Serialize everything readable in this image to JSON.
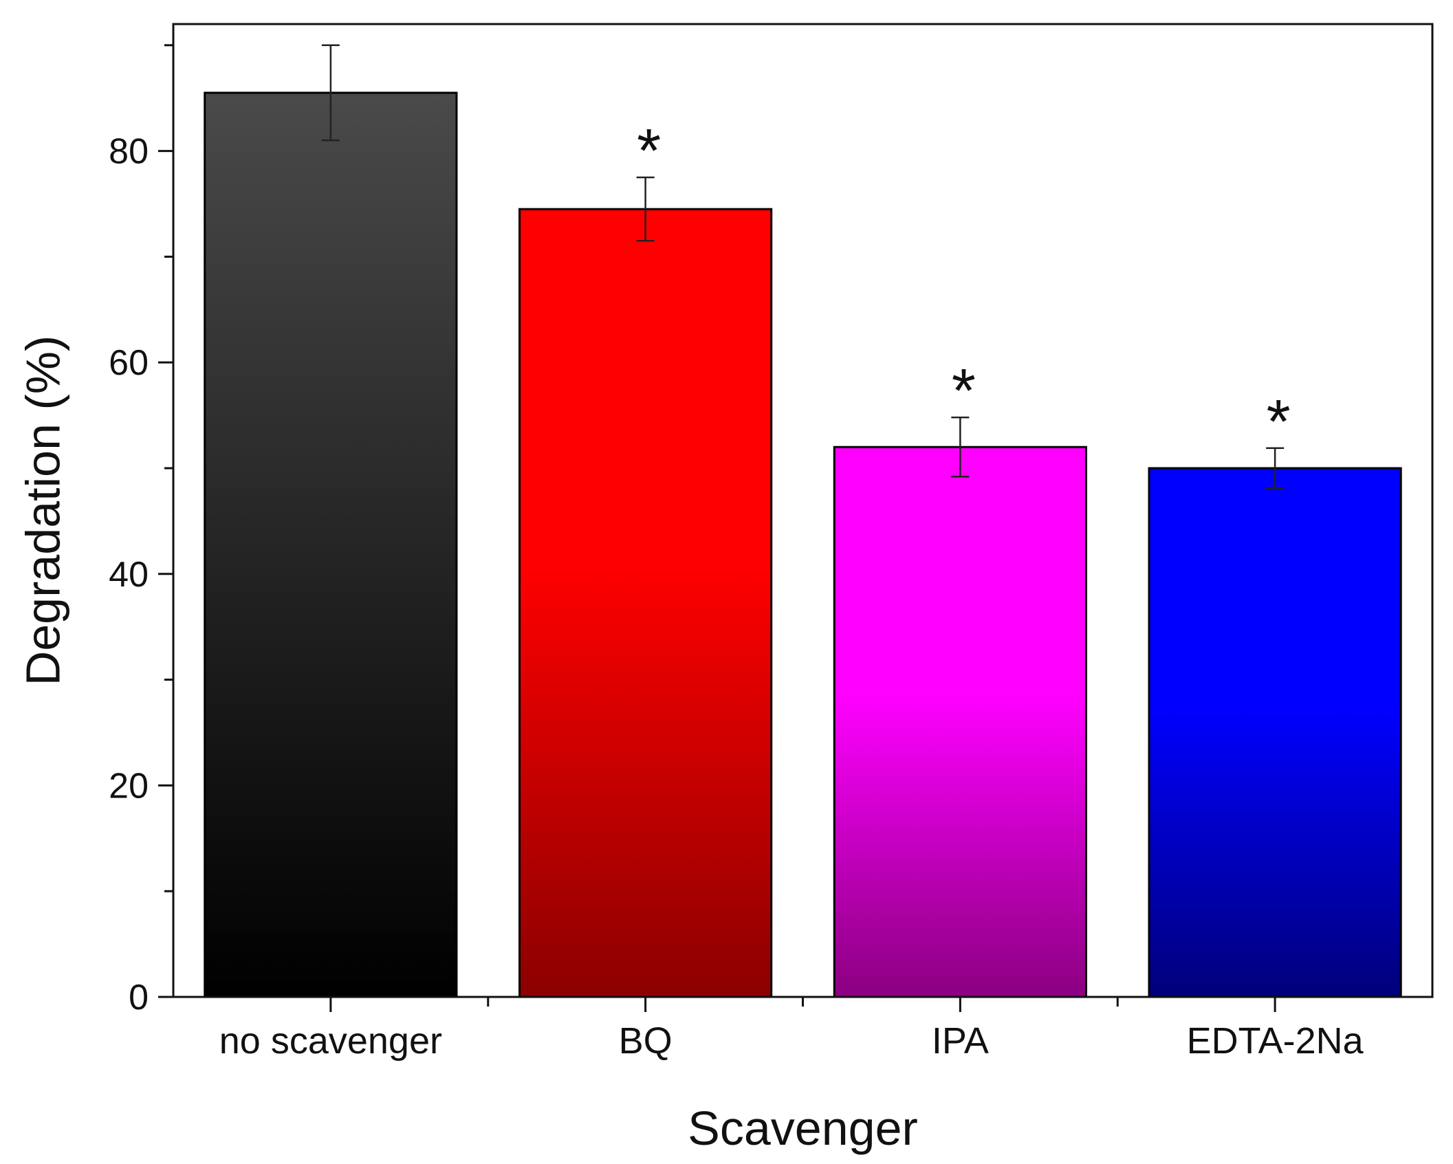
{
  "chart_data": {
    "type": "bar",
    "title": "",
    "xlabel": "Scavenger",
    "ylabel": "Degradation (%)",
    "ylim": [
      0,
      92
    ],
    "yticks": [
      0,
      20,
      40,
      60,
      80
    ],
    "yticks_minor": [
      10,
      30,
      50,
      70,
      90
    ],
    "grid": false,
    "legend": "none",
    "categories": [
      "no scavenger",
      "BQ",
      "IPA",
      "EDTA-2Na"
    ],
    "values": [
      85.5,
      74.5,
      52,
      50
    ],
    "errors": [
      4.5,
      3.0,
      2.8,
      1.9
    ],
    "significance": [
      "",
      "*",
      "*",
      "*"
    ],
    "colors": [
      {
        "top": "#4a4a4a",
        "bottom": "#000000"
      },
      {
        "top": "#ff0000",
        "bottom": "#8b0000"
      },
      {
        "top": "#ff00ff",
        "bottom": "#8b0080"
      },
      {
        "top": "#0000ff",
        "bottom": "#00007a"
      }
    ],
    "bar_edge_color": "#000000",
    "axis_color": "#111111"
  }
}
